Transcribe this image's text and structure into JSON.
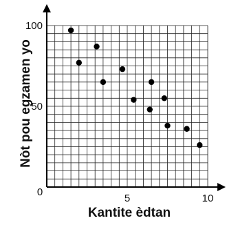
{
  "chart_data": {
    "type": "scatter",
    "xlabel": "Kantite èdtan",
    "ylabel": "Nòt pou egzamen yo",
    "xlim": [
      0,
      10
    ],
    "ylim": [
      0,
      100
    ],
    "x_ticks": [
      0,
      5,
      10
    ],
    "y_ticks": [
      50,
      100
    ],
    "grid": true,
    "points": [
      {
        "x": 1.5,
        "y": 97
      },
      {
        "x": 2.0,
        "y": 77
      },
      {
        "x": 3.1,
        "y": 87
      },
      {
        "x": 3.5,
        "y": 65
      },
      {
        "x": 4.7,
        "y": 73
      },
      {
        "x": 5.4,
        "y": 54
      },
      {
        "x": 6.4,
        "y": 48
      },
      {
        "x": 6.5,
        "y": 65
      },
      {
        "x": 7.3,
        "y": 55
      },
      {
        "x": 7.5,
        "y": 38
      },
      {
        "x": 8.7,
        "y": 36
      },
      {
        "x": 9.5,
        "y": 26
      }
    ]
  }
}
